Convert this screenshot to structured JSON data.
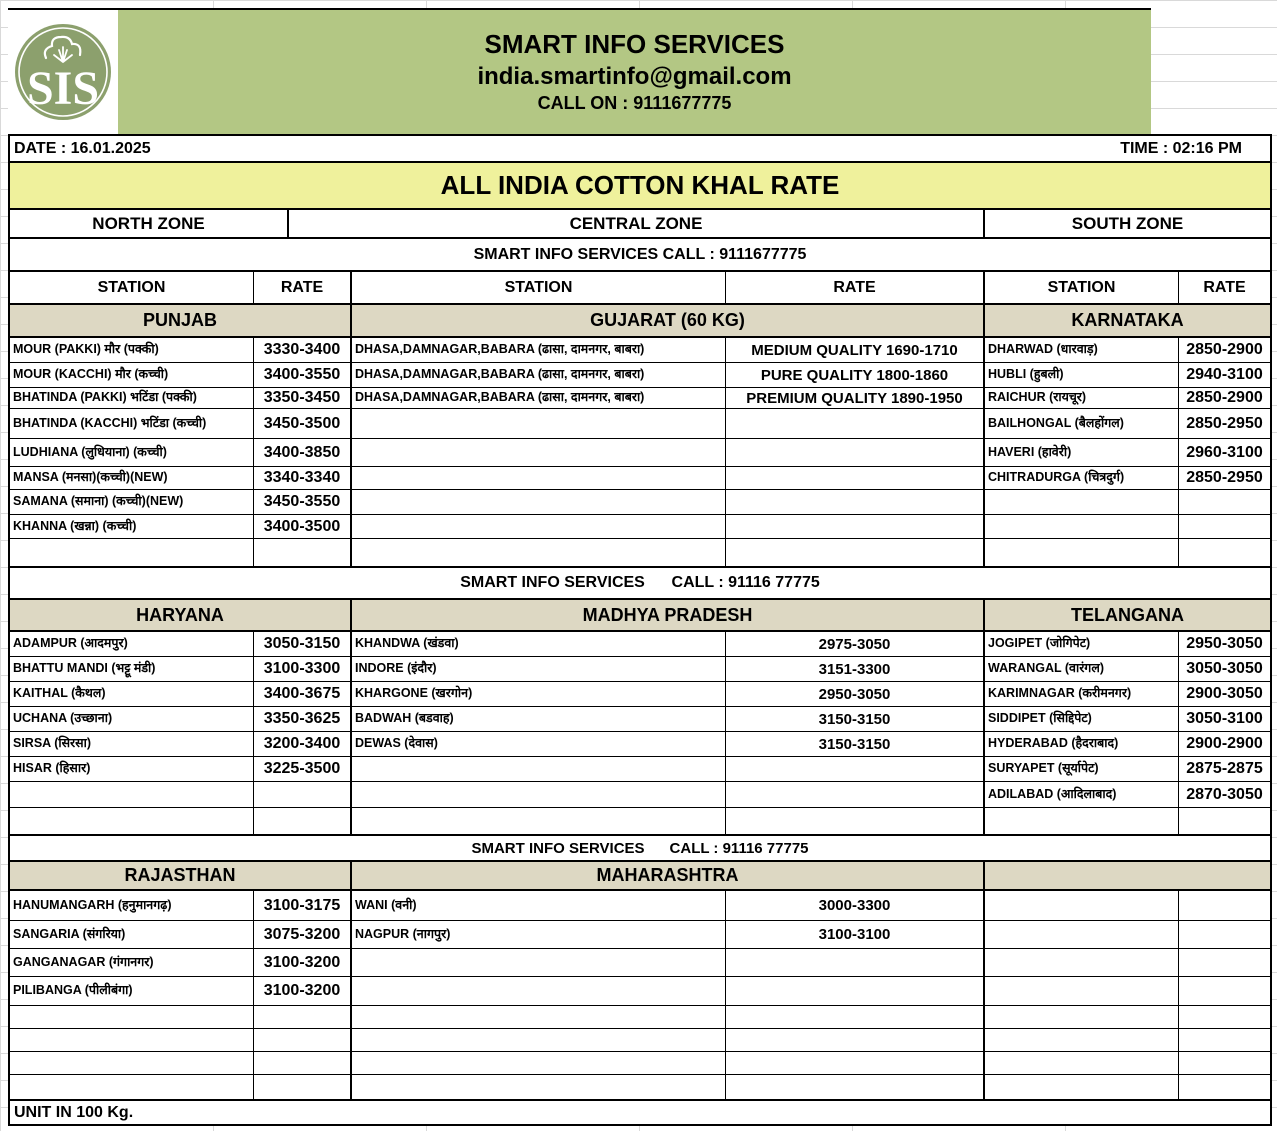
{
  "header": {
    "logo": "SIS",
    "company": "SMART INFO SERVICES",
    "email": "india.smartinfo@gmail.com",
    "call_on": "CALL ON : 9111677775",
    "date": "DATE : 16.01.2025",
    "time": "TIME : 02:16 PM"
  },
  "title": "ALL INDIA COTTON KHAL RATE",
  "zones": [
    "NORTH ZONE",
    "CENTRAL ZONE",
    "SOUTH ZONE"
  ],
  "column_headers": {
    "station": "STATION",
    "rate": "RATE"
  },
  "banners": {
    "top": "SMART INFO SERVICES CALL : 9111677775",
    "mid": "SMART INFO SERVICES      CALL : 91116 77775",
    "bottom": "SMART INFO SERVICES      CALL : 91116 77775"
  },
  "sections": [
    {
      "regions": [
        "PUNJAB",
        "GUJARAT (60 KG)",
        "KARNATAKA"
      ],
      "rows": [
        [
          "MOUR (PAKKI) मौर (पक्की)",
          "3330-3400",
          "DHASA,DAMNAGAR,BABARA (ढासा, दामनगर, बाबरा)",
          "MEDIUM QUALITY 1690-1710",
          "DHARWAD (धारवाड़)",
          "2850-2900"
        ],
        [
          "MOUR (KACCHI) मौर (कच्ची)",
          "3400-3550",
          "DHASA,DAMNAGAR,BABARA (ढासा, दामनगर, बाबरा)",
          "PURE QUALITY 1800-1860",
          "HUBLI (हुबली)",
          "2940-3100"
        ],
        [
          "BHATINDA (PAKKI) भटिंडा (पक्की)",
          "3350-3450",
          "DHASA,DAMNAGAR,BABARA (ढासा, दामनगर, बाबरा)",
          "PREMIUM QUALITY 1890-1950",
          "RAICHUR (रायचूर)",
          "2850-2900"
        ],
        [
          "BHATINDA (KACCHI) भटिंडा (कच्ची)",
          "3450-3500",
          "",
          "",
          "BAILHONGAL (बैलहोंगल)",
          "2850-2950"
        ],
        [
          "LUDHIANA (लुधियाना) (कच्ची)",
          "3400-3850",
          "",
          "",
          "HAVERI (हावेरी)",
          "2960-3100"
        ],
        [
          "MANSA (मनसा)(कच्ची)(NEW)",
          "3340-3340",
          "",
          "",
          "CHITRADURGA (चित्रदुर्ग)",
          "2850-2950"
        ],
        [
          "SAMANA (समाना) (कच्ची)(NEW)",
          "3450-3550",
          "",
          "",
          "",
          ""
        ],
        [
          "KHANNA (खन्ना) (कच्ची)",
          "3400-3500",
          "",
          "",
          "",
          ""
        ],
        [
          "",
          "",
          "",
          "",
          "",
          ""
        ]
      ]
    },
    {
      "regions": [
        "HARYANA",
        "MADHYA PRADESH",
        "TELANGANA"
      ],
      "rows": [
        [
          "ADAMPUR (आदमपुर)",
          "3050-3150",
          "KHANDWA (खंडवा)",
          "2975-3050",
          "JOGIPET (जोगिपेट)",
          "2950-3050"
        ],
        [
          "BHATTU MANDI (भट्टू मंडी)",
          "3100-3300",
          "INDORE (इंदौर)",
          "3151-3300",
          "WARANGAL (वारंगल)",
          "3050-3050"
        ],
        [
          "KAITHAL (कैथल)",
          "3400-3675",
          "KHARGONE (खरगोन)",
          "2950-3050",
          "KARIMNAGAR (करीमनगर)",
          "2900-3050"
        ],
        [
          "UCHANA (उच्छाना)",
          "3350-3625",
          "BADWAH (बडवाह)",
          "3150-3150",
          "SIDDIPET (सिद्दिपेट)",
          "3050-3100"
        ],
        [
          "SIRSA (सिरसा)",
          "3200-3400",
          "DEWAS (देवास)",
          "3150-3150",
          "HYDERABAD (हैदराबाद)",
          "2900-2900"
        ],
        [
          "HISAR (हिसार)",
          "3225-3500",
          "",
          "",
          "SURYAPET (सूर्यापेट)",
          "2875-2875"
        ],
        [
          "",
          "",
          "",
          "",
          "ADILABAD (आदिलाबाद)",
          "2870-3050"
        ],
        [
          "",
          "",
          "",
          "",
          "",
          ""
        ]
      ]
    },
    {
      "regions": [
        "RAJASTHAN",
        "MAHARASHTRA",
        ""
      ],
      "rows": [
        [
          "HANUMANGARH (हनुमानगढ़)",
          "3100-3175",
          "WANI (वनी)",
          "3000-3300",
          "",
          ""
        ],
        [
          "SANGARIA (संगरिया)",
          "3075-3200",
          "NAGPUR (नागपुर)",
          "3100-3100",
          "",
          ""
        ],
        [
          "GANGANAGAR (गंगानगर)",
          "3100-3200",
          "",
          "",
          "",
          ""
        ],
        [
          "PILIBANGA (पीलीबंगा)",
          "3100-3200",
          "",
          "",
          "",
          ""
        ],
        [
          "",
          "",
          "",
          "",
          "",
          ""
        ],
        [
          "",
          "",
          "",
          "",
          "",
          ""
        ],
        [
          "",
          "",
          "",
          "",
          "",
          ""
        ],
        [
          "",
          "",
          "",
          "",
          "",
          ""
        ]
      ]
    }
  ],
  "footer": {
    "unit": "UNIT IN 100 Kg."
  },
  "colors": {
    "header_green": "#b3c784",
    "logo_green": "#8ca06d",
    "title_yellow": "#eff19c",
    "region_tan": "#ddd8c3",
    "border": "#000000",
    "gridline": "#d9d9d9"
  }
}
